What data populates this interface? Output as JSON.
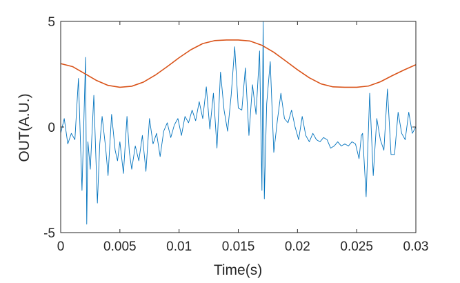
{
  "chart_data": {
    "type": "line",
    "title": "",
    "xlabel": "Time(s)",
    "ylabel": "OUT(A.U.)",
    "xlim": [
      0,
      0.03
    ],
    "ylim": [
      -5,
      5
    ],
    "xticks": [
      0,
      0.005,
      0.01,
      0.015,
      0.02,
      0.025,
      0.03
    ],
    "xtick_labels": [
      "0",
      "0.005",
      "0.01",
      "0.015",
      "0.02",
      "0.025",
      "0.03"
    ],
    "yticks": [
      -5,
      0,
      5
    ],
    "ytick_labels": [
      "-5",
      "0",
      "5"
    ],
    "grid": false,
    "legend": "none",
    "series": [
      {
        "color": "#0072BD",
        "x": [
          0,
          0.0003,
          0.0006,
          0.0009,
          0.0012,
          0.0015,
          0.0018,
          0.0021,
          0.0022,
          0.0023,
          0.0025,
          0.0028,
          0.0031,
          0.0033,
          0.0035,
          0.0038,
          0.004,
          0.0043,
          0.0046,
          0.0048,
          0.005,
          0.0053,
          0.0056,
          0.0058,
          0.006,
          0.0063,
          0.0066,
          0.0069,
          0.0072,
          0.0075,
          0.0078,
          0.0081,
          0.0084,
          0.0087,
          0.009,
          0.0093,
          0.0096,
          0.0099,
          0.0102,
          0.0105,
          0.0108,
          0.0111,
          0.0114,
          0.0117,
          0.012,
          0.0123,
          0.0126,
          0.0129,
          0.0132,
          0.0135,
          0.0138,
          0.0141,
          0.0144,
          0.0147,
          0.015,
          0.0153,
          0.0156,
          0.0159,
          0.0162,
          0.0165,
          0.0168,
          0.017,
          0.0171,
          0.0172,
          0.0174,
          0.0177,
          0.018,
          0.0183,
          0.0186,
          0.0189,
          0.0192,
          0.0195,
          0.0198,
          0.0201,
          0.0204,
          0.0207,
          0.021,
          0.0213,
          0.0216,
          0.0219,
          0.0222,
          0.0225,
          0.0228,
          0.0231,
          0.0234,
          0.0237,
          0.024,
          0.0243,
          0.0246,
          0.0249,
          0.0252,
          0.0254,
          0.0255,
          0.0258,
          0.0261,
          0.0264,
          0.0267,
          0.027,
          0.0273,
          0.0276,
          0.0279,
          0.0282,
          0.0285,
          0.0288,
          0.0291,
          0.0294,
          0.0297,
          0.03
        ],
        "y": [
          -0.3,
          0.4,
          -0.8,
          -0.3,
          -0.6,
          2.3,
          -3.0,
          3.3,
          -4.6,
          -0.7,
          -2.0,
          1.5,
          -3.6,
          -0.8,
          0.5,
          -1.0,
          -2.3,
          0.6,
          -1.1,
          -1.6,
          -0.7,
          -2.2,
          0.5,
          -1.2,
          -2.0,
          -0.9,
          -1.6,
          -0.4,
          -2.1,
          0.4,
          -0.8,
          -0.3,
          -1.4,
          -0.2,
          0.2,
          -0.5,
          0.1,
          0.4,
          -0.4,
          0.5,
          0.2,
          0.8,
          0.3,
          1.2,
          0.4,
          1.9,
          -0.1,
          1.6,
          -1.0,
          2.6,
          0.8,
          -0.2,
          1.5,
          3.8,
          0.9,
          0.8,
          2.8,
          -0.4,
          2.0,
          0.6,
          3.6,
          -3.0,
          5.0,
          -3.4,
          1.1,
          3.1,
          -1.2,
          0.3,
          1.6,
          0.4,
          0.2,
          0.8,
          0.0,
          -0.6,
          0.5,
          -0.4,
          -0.7,
          -0.3,
          -0.6,
          -0.7,
          -0.5,
          -0.6,
          -1.0,
          -0.9,
          -0.7,
          -0.9,
          -0.8,
          -0.9,
          -0.7,
          -0.8,
          -1.5,
          -0.4,
          -0.3,
          -3.3,
          1.6,
          -2.3,
          0.4,
          -0.6,
          -1.1,
          1.8,
          -1.3,
          -1.3,
          0.7,
          -0.3,
          -0.6,
          0.7,
          -0.3,
          0.0
        ]
      },
      {
        "color": "#D95319",
        "x": [
          0,
          0.001,
          0.002,
          0.003,
          0.004,
          0.005,
          0.006,
          0.007,
          0.008,
          0.009,
          0.01,
          0.011,
          0.012,
          0.013,
          0.014,
          0.015,
          0.016,
          0.017,
          0.018,
          0.019,
          0.02,
          0.021,
          0.022,
          0.023,
          0.024,
          0.025,
          0.026,
          0.027,
          0.028,
          0.029,
          0.03
        ],
        "y": [
          3.0,
          2.86,
          2.54,
          2.21,
          1.97,
          1.88,
          1.93,
          2.13,
          2.46,
          2.86,
          3.28,
          3.66,
          3.95,
          4.09,
          4.12,
          4.12,
          4.07,
          3.87,
          3.54,
          3.13,
          2.71,
          2.33,
          2.04,
          1.9,
          1.88,
          1.88,
          1.94,
          2.14,
          2.43,
          2.7,
          2.95
        ]
      }
    ]
  }
}
